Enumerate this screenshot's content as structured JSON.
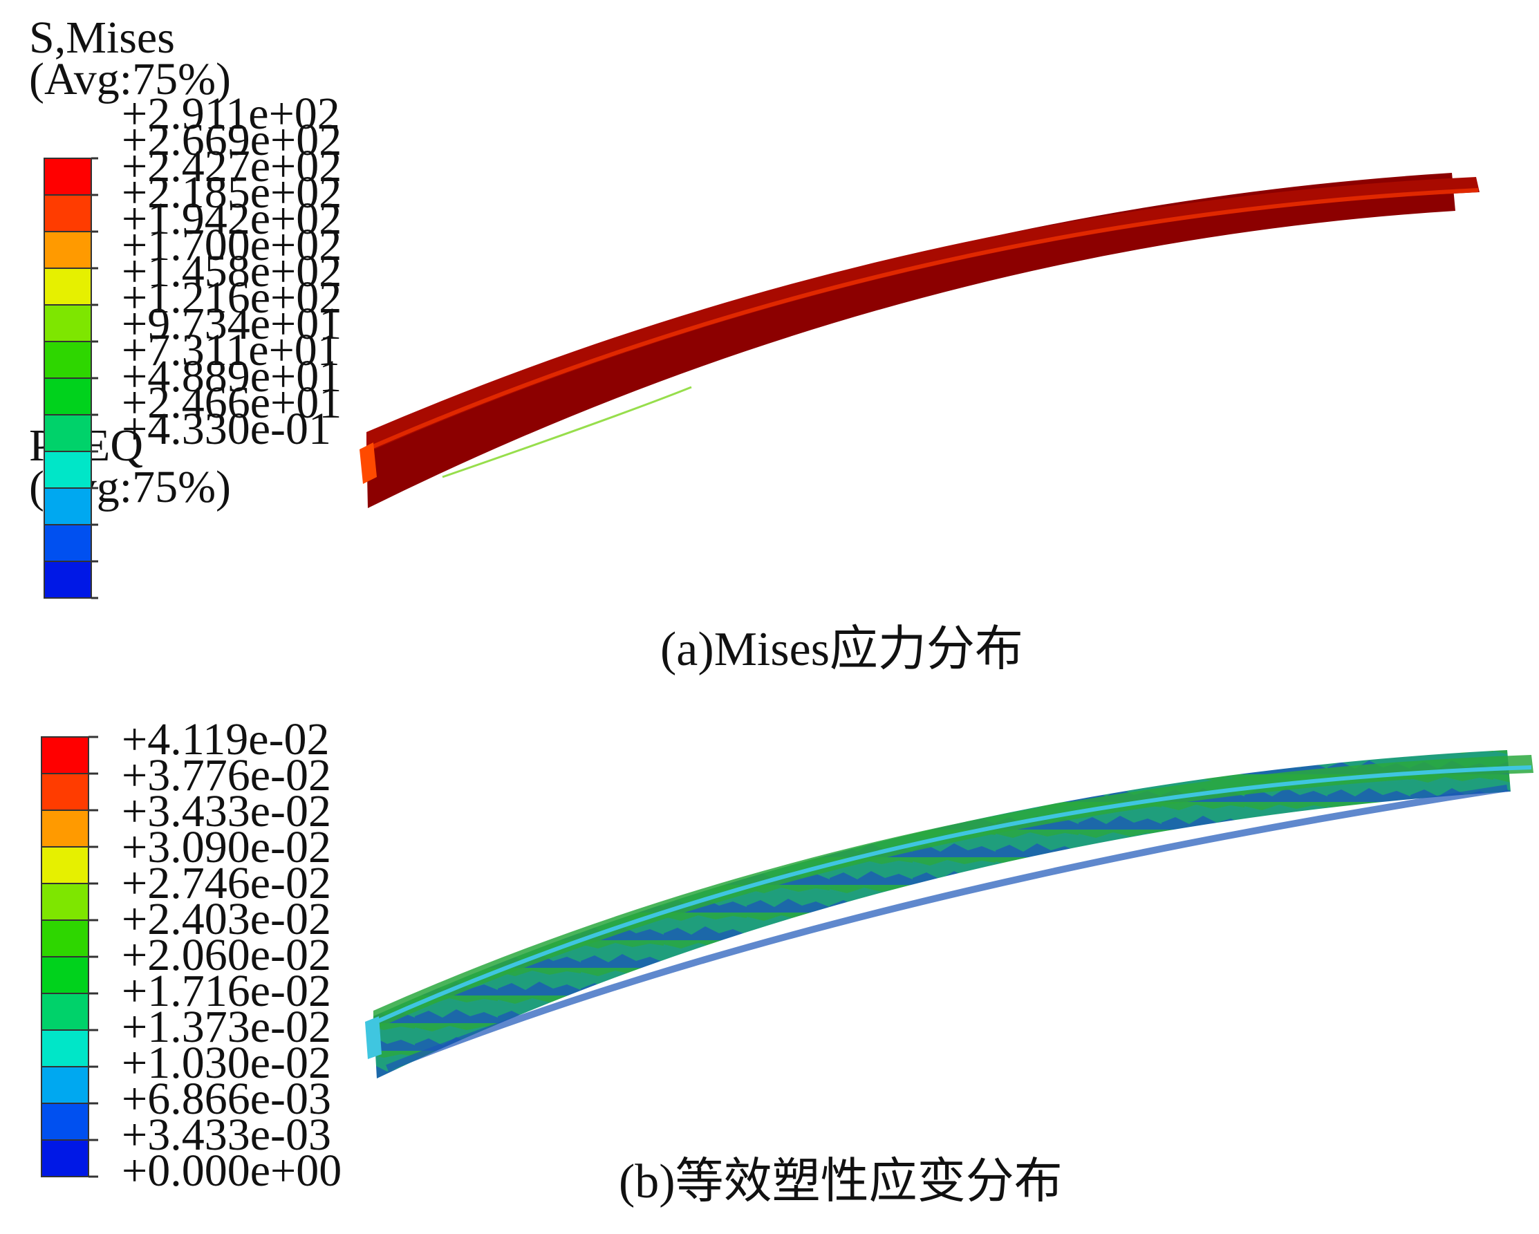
{
  "panel_a": {
    "legend_title_line1": "S,Mises",
    "legend_title_line2": "(Avg:75%)",
    "ticks": [
      "+2.911e+02",
      "+2.669e+02",
      "+2.427e+02",
      "+2.185e+02",
      "+1.942e+02",
      "+1.700e+02",
      "+1.458e+02",
      "+1.216e+02",
      "+9.734e+01",
      "+7.311e+01",
      "+4.889e+01",
      "+2.466e+01",
      "+4.330e-01"
    ],
    "caption": "(a)Mises应力分布"
  },
  "panel_b": {
    "legend_title_line1": "PEEQ",
    "legend_title_line2": "(Avg:75%)",
    "ticks": [
      "+4.119e-02",
      "+3.776e-02",
      "+3.433e-02",
      "+3.090e-02",
      "+2.746e-02",
      "+2.403e-02",
      "+2.060e-02",
      "+1.716e-02",
      "+1.373e-02",
      "+1.030e-02",
      "+6.866e-03",
      "+3.433e-03",
      "+0.000e+00"
    ],
    "caption": "(b)等效塑性应变分布"
  },
  "colormap": [
    "#ff0000",
    "#ff3c00",
    "#ff9a00",
    "#e6f000",
    "#7ee600",
    "#2ed600",
    "#00d21c",
    "#00d26a",
    "#00e6c8",
    "#00a8f0",
    "#0050f0",
    "#0018e6",
    "#0000ff"
  ],
  "beam_colors": {
    "mises_main": "#8c0000",
    "mises_edge": "#d41e00",
    "peeq_main": "#1f9e7c",
    "peeq_flange": "#2aa83e",
    "peeq_low": "#1b55b8",
    "peeq_edge": "#3fc6e0"
  }
}
